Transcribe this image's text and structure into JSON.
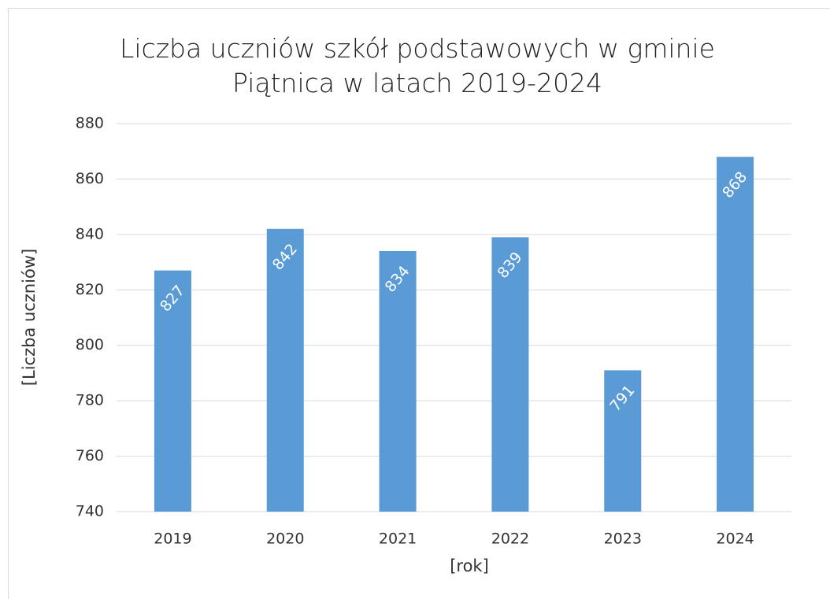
{
  "chart_data": {
    "type": "bar",
    "title": "Liczba uczniów szkół podstawowych w gminie Piątnica w latach 2019-2024",
    "x_label": "[rok]",
    "y_label": "[Liczba uczniów]",
    "categories": [
      "2019",
      "2020",
      "2021",
      "2022",
      "2023",
      "2024"
    ],
    "values": [
      827,
      842,
      834,
      839,
      791,
      868
    ],
    "color": "#5b9bd5",
    "ylim": [
      740,
      880
    ],
    "yticks": [
      740,
      760,
      780,
      800,
      820,
      840,
      860,
      880
    ],
    "grid": true
  }
}
